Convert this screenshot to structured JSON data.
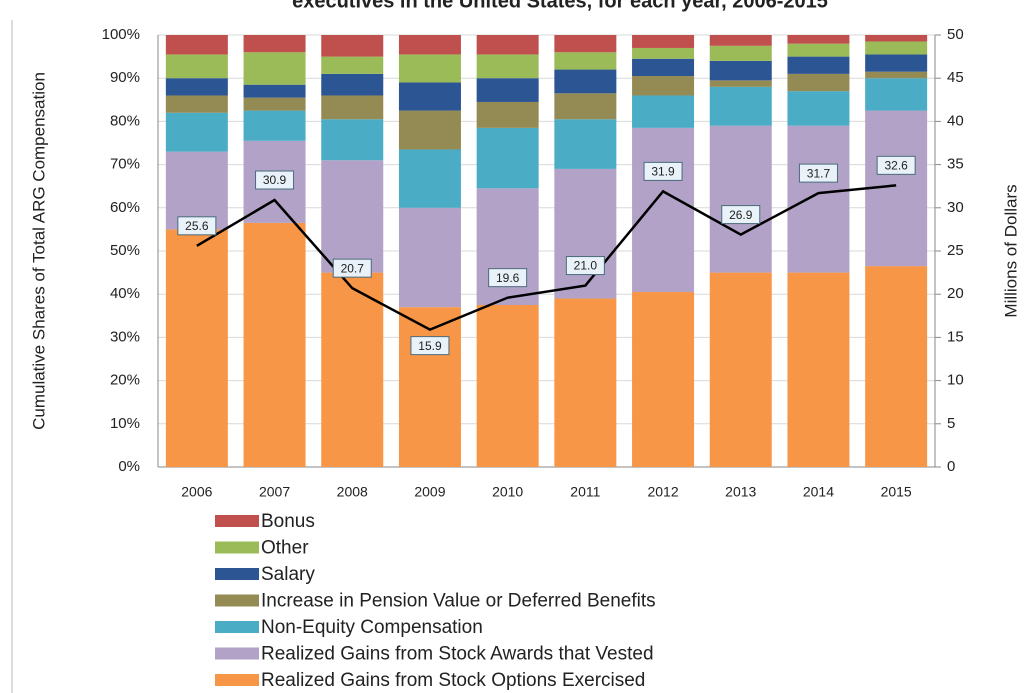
{
  "chart_data": {
    "type": "stacked_bar_line",
    "title": "executives in the United States, for each year, 2006-2015",
    "y_label": "Cumulative Shares of Total ARG Compensation",
    "y2_label": "Millions of Dollars",
    "categories": [
      "2006",
      "2007",
      "2008",
      "2009",
      "2010",
      "2011",
      "2012",
      "2013",
      "2014",
      "2015"
    ],
    "series": [
      {
        "name": "Realized Gains from Stock Options Exercised",
        "color": "#f79646",
        "values": [
          55,
          56.5,
          45,
          37,
          37.5,
          39,
          40.5,
          45,
          45,
          46.5
        ]
      },
      {
        "name": "Realized Gains from Stock Awards that Vested",
        "color": "#b3a2c7",
        "values": [
          18,
          19,
          26,
          23,
          27,
          30,
          38,
          34,
          34,
          36
        ]
      },
      {
        "name": "Non-Equity Compensation",
        "color": "#4bacc6",
        "values": [
          9,
          7,
          9.5,
          13.5,
          14,
          11.5,
          7.5,
          9,
          8,
          7.5
        ]
      },
      {
        "name": "Increase in Pension Value or Deferred Benefits",
        "color": "#948a54",
        "values": [
          4,
          3,
          5.5,
          9,
          6,
          6,
          4.5,
          1.5,
          4,
          1.5
        ]
      },
      {
        "name": "Salary",
        "color": "#2c5593",
        "values": [
          4,
          3,
          5,
          6.5,
          5.5,
          5.5,
          4,
          4.5,
          4,
          4
        ]
      },
      {
        "name": "Other",
        "color": "#9bbb59",
        "values": [
          5.5,
          7.5,
          4,
          6.5,
          5.5,
          4,
          2.5,
          3.5,
          3,
          3
        ]
      },
      {
        "name": "Bonus",
        "color": "#c0504d",
        "values": [
          4.5,
          4,
          5,
          4.5,
          4.5,
          4,
          3,
          2.5,
          2,
          1.5
        ]
      }
    ],
    "line": {
      "axis": "y2",
      "color": "#000000",
      "values": [
        25.6,
        30.9,
        20.7,
        15.9,
        19.6,
        21.0,
        31.9,
        26.9,
        31.7,
        32.6
      ],
      "value_labels": [
        "25.6",
        "30.9",
        "20.7",
        "15.9",
        "19.6",
        "21.0",
        "31.9",
        "26.9",
        "31.7",
        "32.6"
      ]
    },
    "ylim": [
      0,
      100
    ],
    "yticks": [
      {
        "value": 0,
        "label": "0%"
      },
      {
        "value": 10,
        "label": "10%"
      },
      {
        "value": 20,
        "label": "20%"
      },
      {
        "value": 30,
        "label": "30%"
      },
      {
        "value": 40,
        "label": "40%"
      },
      {
        "value": 50,
        "label": "50%"
      },
      {
        "value": 60,
        "label": "60%"
      },
      {
        "value": 70,
        "label": "70%"
      },
      {
        "value": 80,
        "label": "80%"
      },
      {
        "value": 90,
        "label": "90%"
      },
      {
        "value": 100,
        "label": "100%"
      }
    ],
    "y2lim": [
      0,
      50
    ],
    "y2ticks": [
      0,
      5,
      10,
      15,
      20,
      25,
      30,
      35,
      40,
      45,
      50
    ],
    "grid": true
  }
}
